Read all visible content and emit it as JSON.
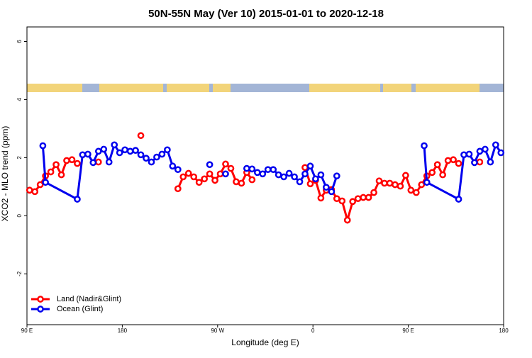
{
  "chart_data": {
    "type": "line",
    "title": "50N-55N May (Ver 10)   2015-01-01 to 2020-12-18",
    "x_label": "Longitude (deg E)",
    "y_label": "XCO2 - MLO trend (ppm)",
    "xlim": [
      90,
      540
    ],
    "ylim": [
      -3.75,
      6.5
    ],
    "xticks": [
      {
        "value": 90,
        "label": "90 E"
      },
      {
        "value": 180,
        "label": "180"
      },
      {
        "value": 270,
        "label": "90 W"
      },
      {
        "value": 360,
        "label": "0"
      },
      {
        "value": 450,
        "label": "90 E"
      },
      {
        "value": 540,
        "label": "180"
      }
    ],
    "yticks": [
      6,
      4,
      2,
      0,
      -2
    ],
    "legend": "bottom-left",
    "series": [
      {
        "name": "Land (Nadir&Glint)",
        "color": "#ff0000",
        "x": [
          92.5,
          97.5,
          102.5,
          107.5,
          112.5,
          117.5,
          122.5,
          127.5,
          132.5,
          137.5,
          null,
          157.5,
          null,
          197.5,
          null,
          232.5,
          237.5,
          242.5,
          247.5,
          252.5,
          257.5,
          262.5,
          267.5,
          272.5,
          277.5,
          282.5,
          287.5,
          292.5,
          297.5,
          302.5,
          null,
          352.5,
          357.5,
          362.5,
          367.5,
          372.5,
          377.5,
          382.5,
          387.5,
          392.5,
          397.5,
          402.5,
          407.5,
          412.5,
          417.5,
          422.5,
          427.5,
          432.5,
          437.5,
          442.5,
          447.5,
          452.5,
          457.5,
          462.5,
          467.5,
          472.5,
          477.5,
          482.5,
          487.5,
          492.5,
          497.5,
          null,
          517.5
        ],
        "values": [
          0.88,
          0.83,
          1.07,
          1.37,
          1.51,
          1.76,
          1.41,
          1.9,
          1.93,
          1.8,
          null,
          1.85,
          null,
          2.76,
          null,
          0.93,
          1.34,
          1.46,
          1.34,
          1.15,
          1.27,
          1.44,
          1.22,
          1.44,
          1.78,
          1.63,
          1.17,
          1.12,
          1.49,
          1.24,
          null,
          1.66,
          1.1,
          1.22,
          0.61,
          0.88,
          0.9,
          0.59,
          0.51,
          -0.15,
          0.49,
          0.59,
          0.63,
          0.63,
          0.8,
          1.2,
          1.12,
          1.12,
          1.07,
          1.02,
          1.39,
          0.88,
          0.8,
          1.07,
          1.37,
          1.49,
          1.76,
          1.41,
          1.9,
          1.93,
          1.8,
          null,
          1.85
        ]
      },
      {
        "name": "Ocean (Glint)",
        "color": "#0000ee",
        "x": [
          105,
          107.5,
          137.5,
          142.5,
          147.5,
          152.5,
          157.5,
          162.5,
          167.5,
          172.5,
          177.5,
          182.5,
          187.5,
          192.5,
          197.5,
          202.5,
          207.5,
          212.5,
          217.5,
          222.5,
          227.5,
          232.5,
          null,
          262.5,
          null,
          277.5,
          null,
          297.5,
          302.5,
          307.5,
          312.5,
          317.5,
          322.5,
          327.5,
          332.5,
          337.5,
          342.5,
          347.5,
          352.5,
          357.5,
          362.5,
          367.5,
          372.5,
          377.5,
          382.5,
          null,
          465,
          467.5,
          497.5,
          502.5,
          507.5,
          512.5,
          517.5,
          522.5,
          527.5,
          532.5,
          537.5
        ],
        "values": [
          2.41,
          1.15,
          0.57,
          2.1,
          2.12,
          1.83,
          2.22,
          2.29,
          1.85,
          2.44,
          2.17,
          2.27,
          2.22,
          2.25,
          2.1,
          1.98,
          1.85,
          2.02,
          2.12,
          2.27,
          1.71,
          1.59,
          null,
          1.76,
          null,
          1.44,
          null,
          1.63,
          1.61,
          1.49,
          1.44,
          1.59,
          1.59,
          1.41,
          1.34,
          1.46,
          1.34,
          1.17,
          1.44,
          1.71,
          1.27,
          1.41,
          0.98,
          0.83,
          1.37,
          null,
          2.41,
          1.15,
          0.57,
          2.1,
          2.12,
          1.83,
          2.22,
          2.29,
          1.85,
          2.44,
          2.17
        ]
      }
    ]
  }
}
